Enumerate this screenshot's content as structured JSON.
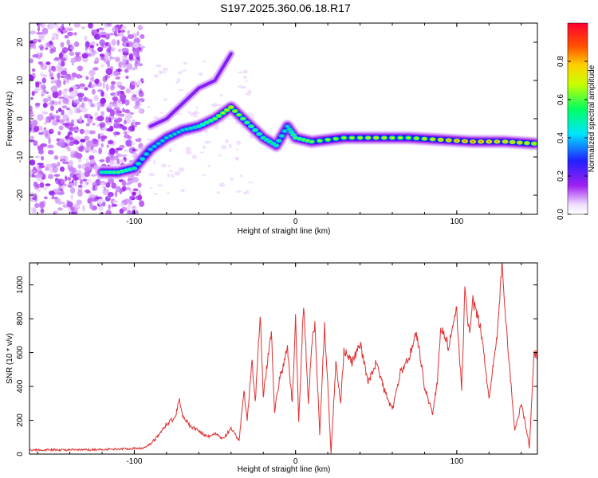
{
  "title": "S197.2025.360.06.18.R17",
  "colors": {
    "signal_line": "#e03030",
    "axis": "#000000",
    "speckle": "#8a2be2"
  },
  "chart_data": [
    {
      "type": "heatmap",
      "title": "S197.2025.360.06.18.R17",
      "xlabel": "Height of straight line (km)",
      "ylabel": "Frequency (Hz)",
      "xlim": [
        -165,
        150
      ],
      "ylim": [
        -25,
        25
      ],
      "xticks": [
        -100,
        0,
        100
      ],
      "yticks": [
        -20,
        -10,
        0,
        10,
        20
      ],
      "colorbar": {
        "label": "Normalized spectral amplitude",
        "range": [
          0,
          1
        ],
        "ticks": [
          0.0,
          0.2,
          0.4,
          0.6,
          0.8
        ],
        "colormap": "rainbow (white-violet-blue-cyan-green-yellow-red)"
      },
      "ridge": [
        {
          "x": -120,
          "y": -14,
          "amp": 0.4
        },
        {
          "x": -110,
          "y": -14,
          "amp": 0.45
        },
        {
          "x": -100,
          "y": -13,
          "amp": 0.4
        },
        {
          "x": -90,
          "y": -8,
          "amp": 0.35
        },
        {
          "x": -80,
          "y": -5,
          "amp": 0.35
        },
        {
          "x": -70,
          "y": -3,
          "amp": 0.35
        },
        {
          "x": -60,
          "y": -2,
          "amp": 0.4
        },
        {
          "x": -50,
          "y": 0,
          "amp": 0.5
        },
        {
          "x": -40,
          "y": 3,
          "amp": 0.6
        },
        {
          "x": -30,
          "y": -1,
          "amp": 0.45
        },
        {
          "x": -20,
          "y": -5,
          "amp": 0.4
        },
        {
          "x": -12,
          "y": -7,
          "amp": 0.4
        },
        {
          "x": -5,
          "y": -2,
          "amp": 0.35
        },
        {
          "x": 0,
          "y": -5,
          "amp": 0.45
        },
        {
          "x": 10,
          "y": -6,
          "amp": 0.5
        },
        {
          "x": 30,
          "y": -5,
          "amp": 0.55
        },
        {
          "x": 50,
          "y": -5,
          "amp": 0.6
        },
        {
          "x": 70,
          "y": -5,
          "amp": 0.55
        },
        {
          "x": 90,
          "y": -5.5,
          "amp": 0.65
        },
        {
          "x": 110,
          "y": -6,
          "amp": 0.7
        },
        {
          "x": 130,
          "y": -6,
          "amp": 0.65
        },
        {
          "x": 148,
          "y": -6.5,
          "amp": 0.6
        }
      ],
      "upper_branch": [
        {
          "x": -90,
          "y": -2
        },
        {
          "x": -80,
          "y": 0
        },
        {
          "x": -60,
          "y": 8
        },
        {
          "x": -50,
          "y": 10
        },
        {
          "x": -40,
          "y": 17
        }
      ]
    },
    {
      "type": "line",
      "xlabel": "Height of straight line (km)",
      "ylabel": "SNR (10 * v/v)",
      "xlim": [
        -165,
        150
      ],
      "ylim": [
        0,
        1130
      ],
      "xticks": [
        -100,
        0,
        100
      ],
      "yticks": [
        0,
        200,
        400,
        600,
        800,
        1000
      ],
      "series": [
        {
          "name": "SNR",
          "x": [
            -165,
            -150,
            -130,
            -110,
            -95,
            -90,
            -85,
            -80,
            -75,
            -72,
            -70,
            -65,
            -60,
            -55,
            -50,
            -45,
            -40,
            -35,
            -32,
            -30,
            -27,
            -25,
            -22,
            -20,
            -15,
            -13,
            -10,
            -5,
            -2,
            0,
            2,
            5,
            8,
            10,
            12,
            15,
            18,
            20,
            22,
            25,
            28,
            30,
            35,
            40,
            45,
            50,
            55,
            60,
            65,
            70,
            75,
            80,
            85,
            88,
            90,
            95,
            100,
            103,
            105,
            108,
            110,
            115,
            120,
            125,
            128,
            130,
            133,
            136,
            140,
            143,
            145,
            148,
            150
          ],
          "values": [
            25,
            25,
            25,
            30,
            35,
            60,
            110,
            180,
            210,
            320,
            230,
            160,
            140,
            100,
            120,
            90,
            150,
            80,
            380,
            200,
            560,
            300,
            830,
            340,
            740,
            250,
            440,
            620,
            300,
            800,
            200,
            890,
            300,
            650,
            780,
            120,
            760,
            400,
            0,
            540,
            300,
            620,
            540,
            650,
            430,
            540,
            380,
            260,
            480,
            560,
            720,
            400,
            240,
            430,
            760,
            630,
            850,
            380,
            960,
            700,
            900,
            740,
            330,
            700,
            1110,
            850,
            480,
            140,
            300,
            160,
            40,
            600,
            580
          ]
        }
      ]
    }
  ]
}
